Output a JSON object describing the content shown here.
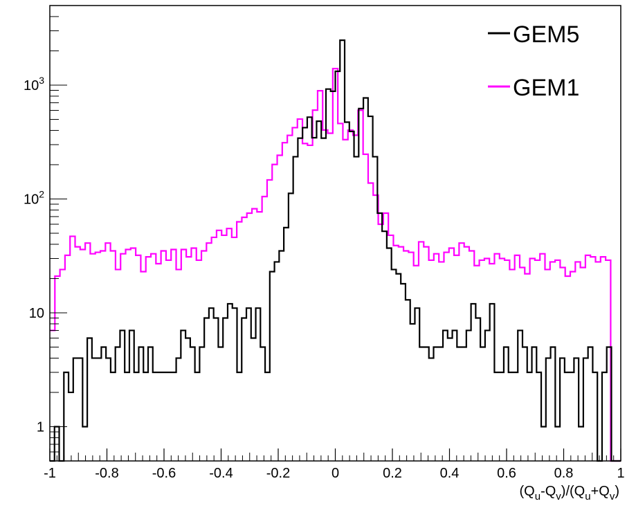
{
  "chart_data": {
    "type": "line",
    "title": "",
    "xlabel": "(Q_u-Q_v)/(Q_u+Q_v)",
    "xlabel_parts": {
      "p1": "(Q",
      "s1": "u",
      "p2": "-Q",
      "s2": "v",
      "p3": ")/(Q",
      "s3": "u",
      "p4": "+Q",
      "s4": "v",
      "p5": ")"
    },
    "ylabel": "",
    "xlim": [
      -1,
      1
    ],
    "ylim": [
      0.5,
      5000
    ],
    "yscale": "log",
    "grid": false,
    "legend_position": "top-right",
    "x_ticks": [
      "-1",
      "-0.8",
      "-0.6",
      "-0.4",
      "-0.2",
      "0",
      "0.2",
      "0.4",
      "0.6",
      "0.8",
      "1"
    ],
    "y_ticks": [
      {
        "value": 1,
        "base": "1",
        "exp": ""
      },
      {
        "value": 10,
        "base": "10",
        "exp": ""
      },
      {
        "value": 100,
        "base": "10",
        "exp": "2"
      },
      {
        "value": 1000,
        "base": "10",
        "exp": "3"
      }
    ],
    "bin_width": 0.02,
    "bin_start": -1.0,
    "series": [
      {
        "name": "GEM5",
        "color": "#000000",
        "values": [
          0.5,
          1,
          0.5,
          3,
          2,
          4,
          4,
          1,
          6,
          4,
          4,
          5,
          4,
          3,
          5,
          7,
          3,
          7,
          3,
          5,
          3,
          5,
          3,
          3,
          3,
          3,
          3,
          4,
          7,
          6,
          5,
          3,
          5,
          9,
          11,
          9,
          5,
          9,
          12,
          11,
          3,
          9,
          11,
          6,
          11,
          5,
          3,
          23,
          28,
          35,
          56,
          112,
          235,
          342,
          423,
          523,
          345,
          482,
          342,
          923,
          883,
          1323,
          2480,
          473,
          392,
          235,
          623,
          772,
          532,
          235,
          75,
          52,
          37,
          24,
          22,
          18,
          13,
          8,
          11,
          5,
          5,
          4,
          5,
          5,
          7,
          6,
          7,
          5,
          5,
          7,
          12,
          9,
          5,
          7,
          12,
          3,
          3,
          5,
          3,
          3,
          7,
          5,
          3,
          5,
          3,
          1,
          4,
          5,
          1,
          4,
          3,
          3,
          4,
          1,
          4,
          5,
          3,
          0.5,
          3,
          5,
          0.5,
          0.5
        ],
        "note": "",
        "label_hint": ""
      },
      {
        "name": "GEM1",
        "color": "#ff00ff",
        "values": [
          7,
          21,
          24,
          32,
          47,
          38,
          36,
          41,
          33,
          34,
          35,
          41,
          35,
          24,
          33,
          36,
          37,
          32,
          23,
          31,
          33,
          27,
          35,
          29,
          36,
          24,
          36,
          31,
          37,
          29,
          35,
          41,
          46,
          53,
          48,
          55,
          46,
          63,
          69,
          75,
          82,
          77,
          105,
          147,
          201,
          242,
          312,
          362,
          423,
          503,
          307,
          296,
          603,
          892,
          403,
          378,
          1397,
          460,
          332,
          402,
          363,
          602,
          247,
          138,
          108,
          60,
          75,
          48,
          39,
          38,
          35,
          34,
          26,
          42,
          38,
          29,
          33,
          28,
          34,
          37,
          32,
          41,
          38,
          35,
          26,
          29,
          30,
          27,
          33,
          30,
          29,
          24,
          32,
          25,
          22,
          30,
          29,
          33,
          24,
          28,
          29,
          25,
          21,
          23,
          28,
          25,
          32,
          31,
          28,
          31,
          29,
          0.5,
          0.5
        ],
        "note": "",
        "label_hint": ""
      }
    ]
  },
  "legend": {
    "items": [
      {
        "label": "GEM5",
        "color": "#000000"
      },
      {
        "label": "GEM1",
        "color": "#ff00ff"
      }
    ]
  }
}
